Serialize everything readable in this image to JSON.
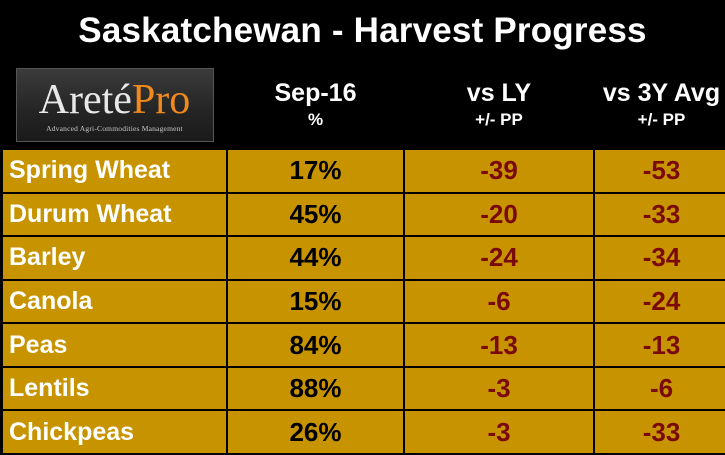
{
  "title": "Saskatchewan - Harvest Progress",
  "logo": {
    "mark_a": "Areté",
    "mark_b": "Pro",
    "tagline": "Advanced Agri-Commodities Management"
  },
  "headers": [
    {
      "main": "Sep-16",
      "sub": "%"
    },
    {
      "main": "vs LY",
      "sub": "+/- PP"
    },
    {
      "main": "vs 3Y Avg",
      "sub": "+/- PP"
    }
  ],
  "rows": [
    {
      "crop": "Spring Wheat",
      "pct": "17%",
      "vs_ly": "-39",
      "vs_3y": "-53"
    },
    {
      "crop": "Durum Wheat",
      "pct": "45%",
      "vs_ly": "-20",
      "vs_3y": "-33"
    },
    {
      "crop": "Barley",
      "pct": "44%",
      "vs_ly": "-24",
      "vs_3y": "-34"
    },
    {
      "crop": "Canola",
      "pct": "15%",
      "vs_ly": "-6",
      "vs_3y": "-24"
    },
    {
      "crop": "Peas",
      "pct": "84%",
      "vs_ly": "-13",
      "vs_3y": "-13"
    },
    {
      "crop": "Lentils",
      "pct": "88%",
      "vs_ly": "-3",
      "vs_3y": "-6"
    },
    {
      "crop": "Chickpeas",
      "pct": "26%",
      "vs_ly": "-3",
      "vs_3y": "-33"
    }
  ],
  "colors": {
    "row_fill": "#c79400",
    "crop_text": "#ffffff",
    "diff_text": "#7a0a0a",
    "background": "#000000"
  }
}
